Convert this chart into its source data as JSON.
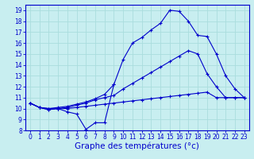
{
  "title": "Graphe des températures (°c)",
  "hours": [
    0,
    1,
    2,
    3,
    4,
    5,
    6,
    7,
    8,
    9,
    10,
    11,
    12,
    13,
    14,
    15,
    16,
    17,
    18,
    19,
    20,
    21,
    22,
    23
  ],
  "line1_x": [
    0,
    1,
    2,
    3,
    4,
    5,
    6,
    7,
    8,
    9
  ],
  "line1_y": [
    10.5,
    10.1,
    9.9,
    10.0,
    9.7,
    9.5,
    8.1,
    8.7,
    8.7,
    12.2
  ],
  "line2_x": [
    0,
    1,
    2,
    3,
    4,
    5,
    6,
    7,
    8,
    9,
    10,
    11,
    12,
    13,
    14,
    15,
    16,
    17,
    18,
    19,
    20,
    21,
    22,
    23
  ],
  "line2_y": [
    10.5,
    10.1,
    9.9,
    10.0,
    10.0,
    10.1,
    10.2,
    10.3,
    10.4,
    10.5,
    10.6,
    10.7,
    10.8,
    10.9,
    11.0,
    11.1,
    11.2,
    11.3,
    11.4,
    11.5,
    11.0,
    11.0,
    11.0,
    11.0
  ],
  "line3_x": [
    0,
    1,
    2,
    3,
    4,
    5,
    6,
    7,
    8,
    9,
    10,
    11,
    12,
    13,
    14,
    15,
    16,
    17,
    18,
    19,
    20,
    21,
    22,
    23
  ],
  "line3_y": [
    10.5,
    10.1,
    10.0,
    10.1,
    10.2,
    10.4,
    10.6,
    10.9,
    11.3,
    12.2,
    14.5,
    16.0,
    16.5,
    17.2,
    17.8,
    19.0,
    18.9,
    18.0,
    16.7,
    16.6,
    15.0,
    13.0,
    11.8,
    11.0
  ],
  "line4_x": [
    0,
    1,
    2,
    3,
    4,
    5,
    6,
    7,
    8,
    9,
    10,
    11,
    12,
    13,
    14,
    15,
    16,
    17,
    18,
    19,
    20,
    21,
    22,
    23
  ],
  "line4_y": [
    10.5,
    10.1,
    10.0,
    10.0,
    10.1,
    10.3,
    10.5,
    10.8,
    11.0,
    11.2,
    11.8,
    12.3,
    12.8,
    13.3,
    13.8,
    14.3,
    14.8,
    15.3,
    15.0,
    13.2,
    12.0,
    11.0,
    11.0,
    11.0
  ],
  "ylim": [
    8,
    19.5
  ],
  "yticks": [
    8,
    9,
    10,
    11,
    12,
    13,
    14,
    15,
    16,
    17,
    18,
    19
  ],
  "line_color": "#0000cc",
  "bg_color": "#c8eef0",
  "grid_color": "#aadddd",
  "tick_fontsize": 5.5,
  "xlabel_fontsize": 7.5
}
